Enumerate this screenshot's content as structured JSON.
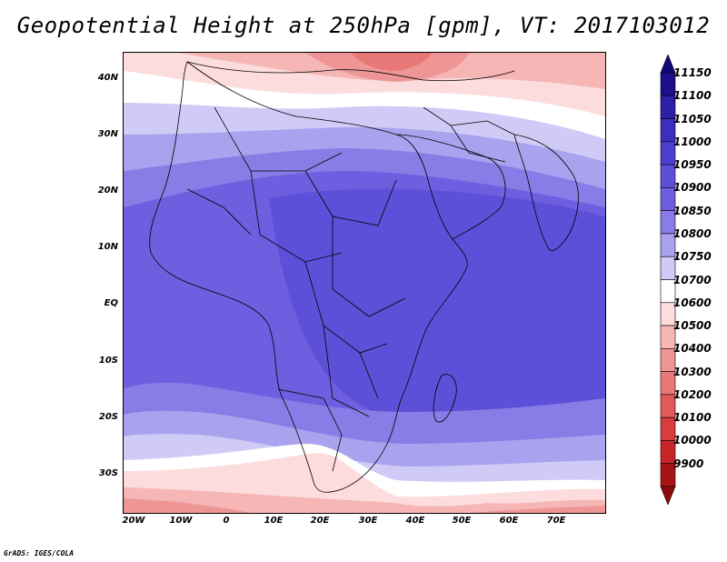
{
  "title": "Geopotential Height at 250hPa [gpm], VT: 2017103012",
  "credit": "GrADS: IGES/COLA",
  "axes": {
    "lat_ticks": [
      "40N",
      "30N",
      "20N",
      "10N",
      "EQ",
      "10S",
      "20S",
      "30S"
    ],
    "lon_ticks": [
      "20W",
      "10W",
      "0",
      "10E",
      "20E",
      "30E",
      "40E",
      "50E",
      "60E",
      "70E"
    ]
  },
  "legend": {
    "levels": [
      "11150",
      "11100",
      "11050",
      "11000",
      "10950",
      "10900",
      "10850",
      "10800",
      "10750",
      "10700",
      "10600",
      "10500",
      "10400",
      "10300",
      "10200",
      "10100",
      "10000",
      "9900"
    ],
    "colors": [
      "#1d0e8c",
      "#2c1fa8",
      "#3b2fc0",
      "#4c40d0",
      "#5d50d8",
      "#6f5ee0",
      "#8a7ce6",
      "#aaa2ee",
      "#cfcbf6",
      "#ffffff",
      "#fcdcdc",
      "#f6b6b6",
      "#ee9696",
      "#e87878",
      "#e05a5a",
      "#d83c3c",
      "#c82626",
      "#a81414"
    ],
    "top_color": "#120878",
    "bottom_color": "#8c0c0c"
  },
  "map_data": {
    "variable": "Geopotential Height",
    "level": "250hPa",
    "units": "gpm",
    "valid_time": "2017103012"
  }
}
